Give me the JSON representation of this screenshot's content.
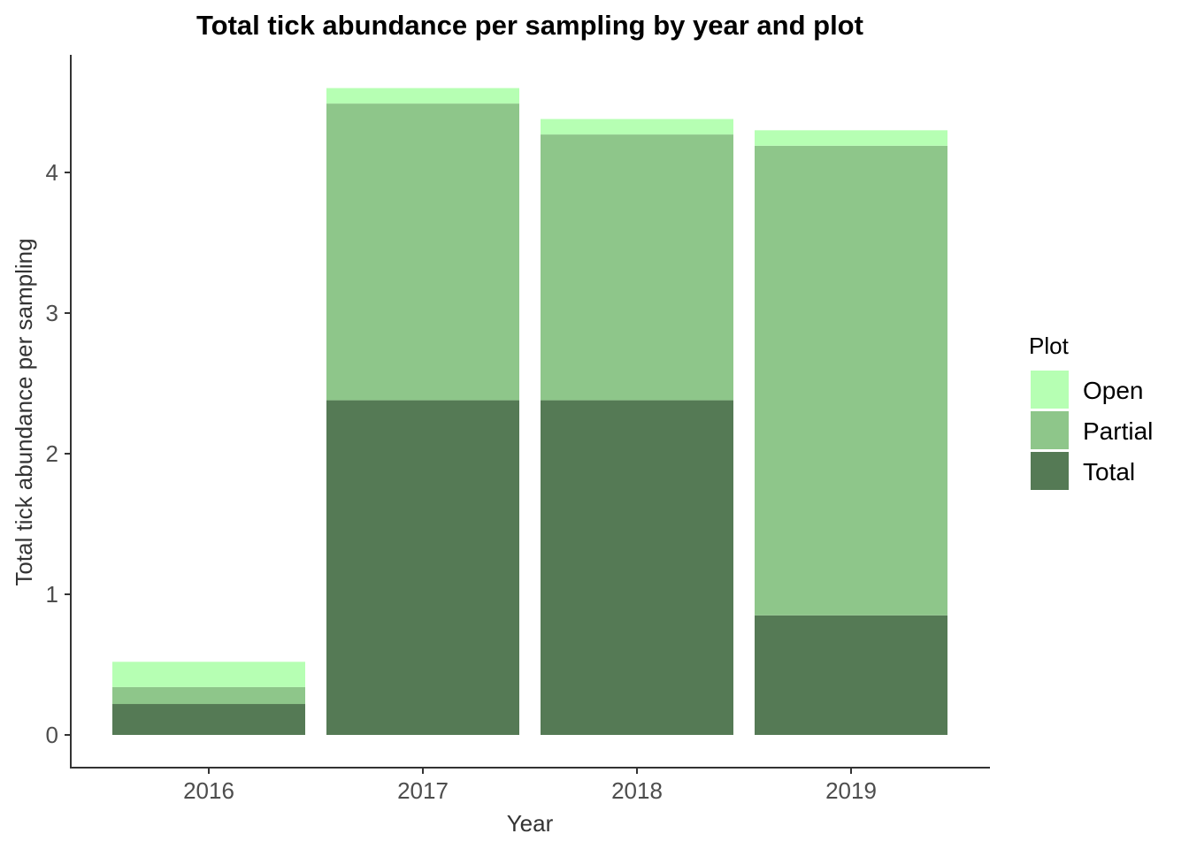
{
  "chart_data": {
    "type": "bar",
    "stacked": true,
    "title": "Total tick abundance per sampling by year and plot",
    "xlabel": "Year",
    "ylabel": "Total tick abundance per sampling",
    "categories": [
      "2016",
      "2017",
      "2018",
      "2019"
    ],
    "ylim": [
      0,
      4.6
    ],
    "yticks": [
      0,
      1,
      2,
      3,
      4
    ],
    "ytick_labels": [
      "0",
      "1",
      "2",
      "3",
      "4"
    ],
    "grid": false,
    "legend_position": "right",
    "legend_title": "Plot",
    "series": [
      {
        "name": "Total",
        "color": "#557A55",
        "values": [
          0.22,
          2.38,
          2.38,
          0.85
        ]
      },
      {
        "name": "Partial",
        "color": "#8EC68A",
        "values": [
          0.12,
          2.11,
          1.89,
          3.34
        ]
      },
      {
        "name": "Open",
        "color": "#B6FFB3",
        "values": [
          0.18,
          0.11,
          0.11,
          0.11
        ]
      }
    ],
    "legend_order": [
      "Open",
      "Partial",
      "Total"
    ]
  }
}
